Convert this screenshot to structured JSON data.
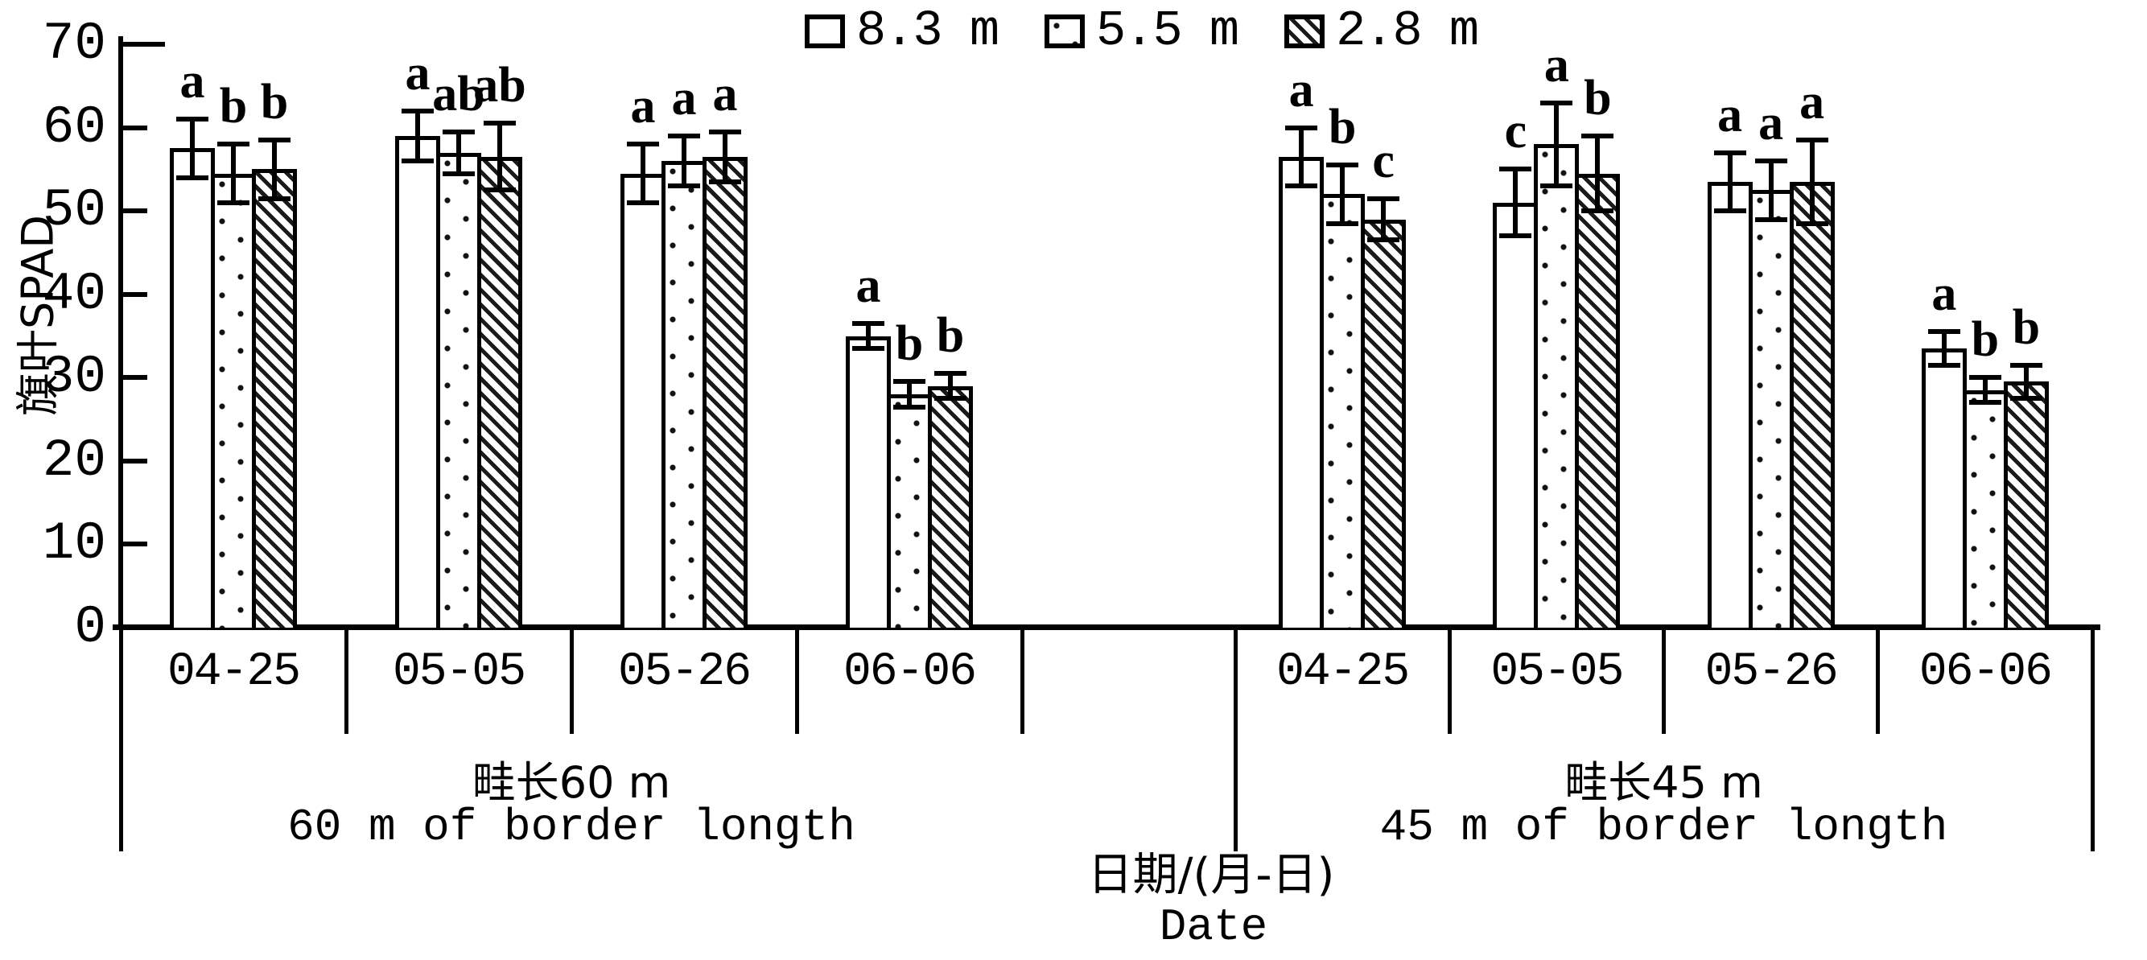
{
  "chart_data": {
    "type": "bar",
    "ylabel": "旗叶SPAD",
    "xlabel_zh": "日期/(月-日)",
    "xlabel_en": "Date",
    "ylim": [
      0,
      70
    ],
    "yticks": [
      0,
      10,
      20,
      30,
      40,
      50,
      60,
      70
    ],
    "legend": [
      {
        "label": "8.3 m",
        "pattern": "plain"
      },
      {
        "label": "5.5 m",
        "pattern": "dots"
      },
      {
        "label": "2.8 m",
        "pattern": "hatch"
      }
    ],
    "groups": [
      {
        "label_zh": "畦长60 m",
        "label_en": "60 m of border longth",
        "dates": [
          {
            "date": "04-25",
            "bars": [
              {
                "series": "8.3 m",
                "value": 57.5,
                "err": 3.5,
                "letter": "a"
              },
              {
                "series": "5.5 m",
                "value": 54.5,
                "err": 3.5,
                "letter": "b"
              },
              {
                "series": "2.8 m",
                "value": 55.0,
                "err": 3.5,
                "letter": "b"
              }
            ]
          },
          {
            "date": "05-05",
            "bars": [
              {
                "series": "8.3 m",
                "value": 59.0,
                "err": 3.0,
                "letter": "a"
              },
              {
                "series": "5.5 m",
                "value": 57.0,
                "err": 2.5,
                "letter": "ab"
              },
              {
                "series": "2.8 m",
                "value": 56.5,
                "err": 4.0,
                "letter": "ab"
              }
            ]
          },
          {
            "date": "05-26",
            "bars": [
              {
                "series": "8.3 m",
                "value": 54.5,
                "err": 3.5,
                "letter": "a"
              },
              {
                "series": "5.5 m",
                "value": 56.0,
                "err": 3.0,
                "letter": "a"
              },
              {
                "series": "2.8 m",
                "value": 56.5,
                "err": 3.0,
                "letter": "a"
              }
            ]
          },
          {
            "date": "06-06",
            "bars": [
              {
                "series": "8.3 m",
                "value": 35.0,
                "err": 1.5,
                "letter": "a"
              },
              {
                "series": "5.5 m",
                "value": 28.0,
                "err": 1.5,
                "letter": "b"
              },
              {
                "series": "2.8 m",
                "value": 29.0,
                "err": 1.5,
                "letter": "b"
              }
            ]
          }
        ]
      },
      {
        "label_zh": "畦长45 m",
        "label_en": "45 m of border longth",
        "dates": [
          {
            "date": "04-25",
            "bars": [
              {
                "series": "8.3 m",
                "value": 56.5,
                "err": 3.5,
                "letter": "a"
              },
              {
                "series": "5.5 m",
                "value": 52.0,
                "err": 3.5,
                "letter": "b"
              },
              {
                "series": "2.8 m",
                "value": 49.0,
                "err": 2.5,
                "letter": "c"
              }
            ]
          },
          {
            "date": "05-05",
            "bars": [
              {
                "series": "8.3 m",
                "value": 51.0,
                "err": 4.0,
                "letter": "c"
              },
              {
                "series": "5.5 m",
                "value": 58.0,
                "err": 5.0,
                "letter": "a"
              },
              {
                "series": "2.8 m",
                "value": 54.5,
                "err": 4.5,
                "letter": "b"
              }
            ]
          },
          {
            "date": "05-26",
            "bars": [
              {
                "series": "8.3 m",
                "value": 53.5,
                "err": 3.5,
                "letter": "a"
              },
              {
                "series": "5.5 m",
                "value": 52.5,
                "err": 3.5,
                "letter": "a"
              },
              {
                "series": "2.8 m",
                "value": 53.5,
                "err": 5.0,
                "letter": "a"
              }
            ]
          },
          {
            "date": "06-06",
            "bars": [
              {
                "series": "8.3 m",
                "value": 33.5,
                "err": 2.0,
                "letter": "a"
              },
              {
                "series": "5.5 m",
                "value": 28.5,
                "err": 1.5,
                "letter": "b"
              },
              {
                "series": "2.8 m",
                "value": 29.5,
                "err": 2.0,
                "letter": "b"
              }
            ]
          }
        ]
      }
    ]
  }
}
